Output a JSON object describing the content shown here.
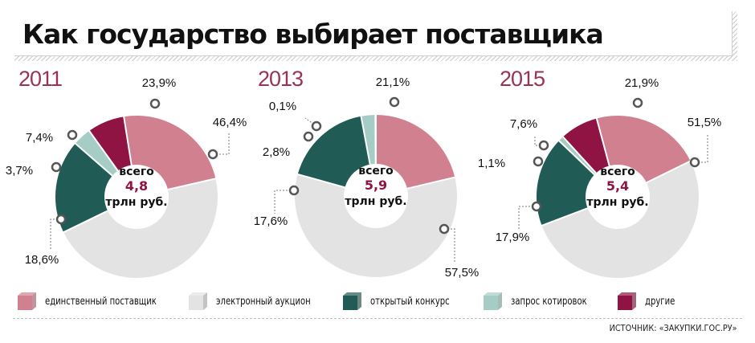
{
  "title": "Как государство выбирает поставщика",
  "colors": {
    "single": "#d1808f",
    "electronic": "#e3e3e3",
    "open": "#205b55",
    "quote": "#a5cdc6",
    "other": "#8f1343",
    "year": "#9a3352",
    "total_value": "#8f1343"
  },
  "legend": [
    {
      "key": "single",
      "label": "единственный поставщик"
    },
    {
      "key": "electronic",
      "label": "электронный аукцион"
    },
    {
      "key": "open",
      "label": "открытый конкурс"
    },
    {
      "key": "quote",
      "label": "запрос котировок"
    },
    {
      "key": "other",
      "label": "другие"
    }
  ],
  "center_text": {
    "top": "всего",
    "unit": "трлн руб."
  },
  "source": "ИСТОЧНИК: «ЗАКУПКИ.ГОС.РУ»",
  "chart_data": [
    {
      "type": "pie",
      "year": "2011",
      "total": "4,8",
      "categories": [
        "единственный поставщик",
        "электронный аукцион",
        "открытый конкурс",
        "запрос котировок",
        "другие"
      ],
      "values": [
        23.9,
        46.4,
        18.6,
        3.7,
        7.4
      ],
      "labels": [
        "23,9%",
        "46,4%",
        "18,6%",
        "3,7%",
        "7,4%"
      ]
    },
    {
      "type": "pie",
      "year": "2013",
      "total": "5,9",
      "categories": [
        "единственный поставщик",
        "электронный аукцион",
        "открытый конкурс",
        "запрос котировок",
        "другие"
      ],
      "values": [
        21.1,
        57.5,
        17.6,
        2.8,
        0.1
      ],
      "labels": [
        "21,1%",
        "57,5%",
        "17,6%",
        "2,8%",
        "0,1%"
      ]
    },
    {
      "type": "pie",
      "year": "2015",
      "total": "5,4",
      "categories": [
        "единственный поставщик",
        "электронный аукцион",
        "открытый конкурс",
        "запрос котировок",
        "другие"
      ],
      "values": [
        21.9,
        51.5,
        17.9,
        1.1,
        7.6
      ],
      "labels": [
        "21,9%",
        "51,5%",
        "17,9%",
        "1,1%",
        "7,6%"
      ]
    }
  ]
}
